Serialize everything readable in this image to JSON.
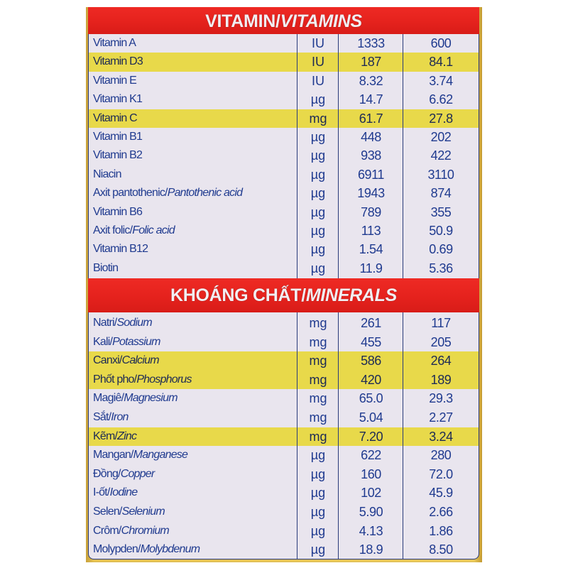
{
  "colors": {
    "header_red": "#e5221d",
    "row_bg": "#e9e5ee",
    "highlight_yellow": "#e8d94a",
    "text_blue": "#1f3a8f",
    "edge_gold": "#e2bf52"
  },
  "vitamins": {
    "header": {
      "main": "VITAMIN/",
      "italic": "VITAMINS"
    },
    "rows": [
      {
        "name": "Vitamin A",
        "name_en": "",
        "unit": "IU",
        "v1": "1333",
        "v2": "600",
        "highlight": false
      },
      {
        "name": "Vitamin D3",
        "name_en": "",
        "unit": "IU",
        "v1": "187",
        "v2": "84.1",
        "highlight": true
      },
      {
        "name": "Vitamin E",
        "name_en": "",
        "unit": "IU",
        "v1": "8.32",
        "v2": "3.74",
        "highlight": false
      },
      {
        "name": "Vitamin K1",
        "name_en": "",
        "unit": "µg",
        "v1": "14.7",
        "v2": "6.62",
        "highlight": false
      },
      {
        "name": "Vitamin C",
        "name_en": "",
        "unit": "mg",
        "v1": "61.7",
        "v2": "27.8",
        "highlight": true
      },
      {
        "name": "Vitamin B1",
        "name_en": "",
        "unit": "µg",
        "v1": "448",
        "v2": "202",
        "highlight": false
      },
      {
        "name": "Vitamin B2",
        "name_en": "",
        "unit": "µg",
        "v1": "938",
        "v2": "422",
        "highlight": false
      },
      {
        "name": "Niacin",
        "name_en": "",
        "unit": "µg",
        "v1": "6911",
        "v2": "3110",
        "highlight": false
      },
      {
        "name": "Axit pantothenic/",
        "name_en": "Pantothenic acid",
        "unit": "µg",
        "v1": "1943",
        "v2": "874",
        "highlight": false
      },
      {
        "name": "Vitamin B6",
        "name_en": "",
        "unit": "µg",
        "v1": "789",
        "v2": "355",
        "highlight": false
      },
      {
        "name": "Axit folic/",
        "name_en": "Folic acid",
        "unit": "µg",
        "v1": "113",
        "v2": "50.9",
        "highlight": false
      },
      {
        "name": "Vitamin B12",
        "name_en": "",
        "unit": "µg",
        "v1": "1.54",
        "v2": "0.69",
        "highlight": false
      },
      {
        "name": "Biotin",
        "name_en": "",
        "unit": "µg",
        "v1": "11.9",
        "v2": "5.36",
        "highlight": false
      }
    ]
  },
  "minerals": {
    "header": {
      "main": "KHOÁNG CHẤT/",
      "italic": "MINERALS"
    },
    "rows": [
      {
        "name": "Natri/",
        "name_en": "Sodium",
        "unit": "mg",
        "v1": "261",
        "v2": "117",
        "highlight": false
      },
      {
        "name": "Kali/",
        "name_en": "Potassium",
        "unit": "mg",
        "v1": "455",
        "v2": "205",
        "highlight": false
      },
      {
        "name": "Canxi/",
        "name_en": "Calcium",
        "unit": "mg",
        "v1": "586",
        "v2": "264",
        "highlight": true
      },
      {
        "name": "Phốt pho/",
        "name_en": "Phosphorus",
        "unit": "mg",
        "v1": "420",
        "v2": "189",
        "highlight": true
      },
      {
        "name": "Magiê/",
        "name_en": "Magnesium",
        "unit": "mg",
        "v1": "65.0",
        "v2": "29.3",
        "highlight": false
      },
      {
        "name": "Sắt/",
        "name_en": "Iron",
        "unit": "mg",
        "v1": "5.04",
        "v2": "2.27",
        "highlight": false
      },
      {
        "name": "Kẽm/",
        "name_en": "Zinc",
        "unit": "mg",
        "v1": "7.20",
        "v2": "3.24",
        "highlight": true
      },
      {
        "name": "Mangan/",
        "name_en": "Manganese",
        "unit": "µg",
        "v1": "622",
        "v2": "280",
        "highlight": false
      },
      {
        "name": "Đồng/",
        "name_en": "Copper",
        "unit": "µg",
        "v1": "160",
        "v2": "72.0",
        "highlight": false
      },
      {
        "name": "I-ốt/",
        "name_en": "Iodine",
        "unit": "µg",
        "v1": "102",
        "v2": "45.9",
        "highlight": false
      },
      {
        "name": "Selen/",
        "name_en": "Selenium",
        "unit": "µg",
        "v1": "5.90",
        "v2": "2.66",
        "highlight": false
      },
      {
        "name": "Crôm/",
        "name_en": "Chromium",
        "unit": "µg",
        "v1": "4.13",
        "v2": "1.86",
        "highlight": false
      },
      {
        "name": "Molypden/",
        "name_en": "Molybdenum",
        "unit": "µg",
        "v1": "18.9",
        "v2": "8.50",
        "highlight": false
      }
    ]
  }
}
